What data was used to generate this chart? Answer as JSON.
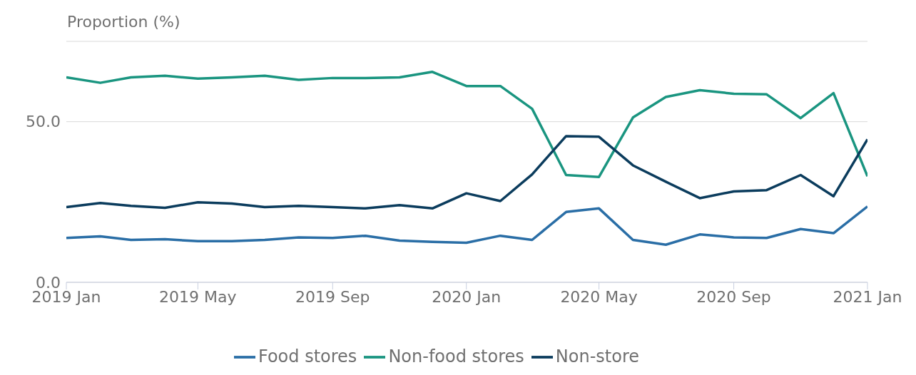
{
  "chart_data": {
    "type": "line",
    "ylabel": "Proportion (%)",
    "x": [
      "2019-01",
      "2019-02",
      "2019-03",
      "2019-04",
      "2019-05",
      "2019-06",
      "2019-07",
      "2019-08",
      "2019-09",
      "2019-10",
      "2019-11",
      "2019-12",
      "2020-01",
      "2020-02",
      "2020-03",
      "2020-04",
      "2020-05",
      "2020-06",
      "2020-07",
      "2020-08",
      "2020-09",
      "2020-10",
      "2020-11",
      "2020-12",
      "2021-01"
    ],
    "series": [
      {
        "name": "Food stores",
        "color": "#2a6ea6",
        "values": [
          13.8,
          14.3,
          13.2,
          13.4,
          12.8,
          12.8,
          13.2,
          14.0,
          13.8,
          14.5,
          13.0,
          12.6,
          12.3,
          14.5,
          13.2,
          21.9,
          23.0,
          13.2,
          11.7,
          14.9,
          14.0,
          13.8,
          16.6,
          15.3,
          23.6
        ]
      },
      {
        "name": "Non-food stores",
        "color": "#1a9580",
        "values": [
          63.8,
          62.1,
          63.8,
          64.3,
          63.4,
          63.8,
          64.3,
          63.0,
          63.6,
          63.6,
          63.8,
          65.5,
          61.1,
          61.1,
          54.0,
          33.4,
          32.8,
          51.3,
          57.7,
          59.8,
          58.7,
          58.5,
          51.1,
          58.9,
          33.0
        ]
      },
      {
        "name": "Non-store",
        "color": "#0b3c5d",
        "values": [
          23.4,
          24.7,
          23.8,
          23.2,
          24.9,
          24.5,
          23.4,
          23.8,
          23.4,
          23.0,
          24.0,
          23.0,
          27.7,
          25.3,
          33.6,
          45.5,
          45.3,
          36.4,
          31.3,
          26.2,
          28.3,
          28.7,
          33.4,
          26.8,
          44.5
        ]
      }
    ],
    "xlim": [
      "2019-01",
      "2021-01"
    ],
    "xticks": [
      {
        "value": "2019-01",
        "label": "2019 Jan"
      },
      {
        "value": "2019-05",
        "label": "2019 May"
      },
      {
        "value": "2019-09",
        "label": "2019 Sep"
      },
      {
        "value": "2020-01",
        "label": "2020 Jan"
      },
      {
        "value": "2020-05",
        "label": "2020 May"
      },
      {
        "value": "2020-09",
        "label": "2020 Sep"
      },
      {
        "value": "2021-01",
        "label": "2021 Jan"
      }
    ],
    "ylim": [
      0,
      75
    ],
    "yticks": [
      {
        "value": 0,
        "label": "0.0"
      },
      {
        "value": 50,
        "label": "50.0"
      }
    ],
    "grid": "y",
    "legend": "bottom",
    "marker": "none",
    "line_style": "solid"
  }
}
